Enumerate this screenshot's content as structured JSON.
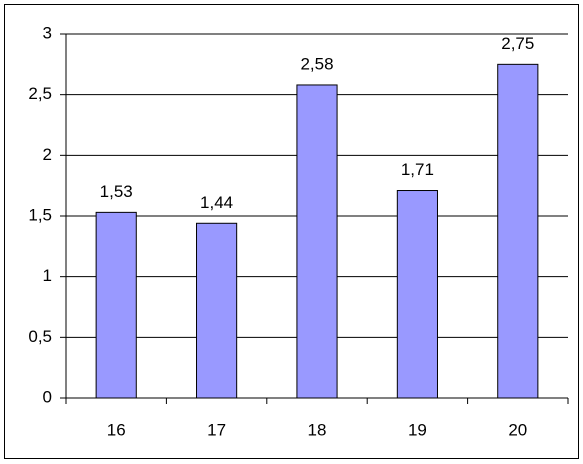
{
  "chart_data": {
    "type": "bar",
    "categories": [
      "16",
      "17",
      "18",
      "19",
      "20"
    ],
    "values": [
      1.53,
      1.44,
      2.58,
      1.71,
      2.75
    ],
    "value_labels": [
      "1,53",
      "1,44",
      "2,58",
      "1,71",
      "2,75"
    ],
    "color": "#9999ff",
    "ylim": [
      0,
      3
    ],
    "yticks": [
      0,
      {
        "value": 0.5,
        "label": "0,5"
      },
      1,
      {
        "value": 1.5,
        "label": "1,5"
      },
      2,
      {
        "value": 2.5,
        "label": "2,5"
      },
      3
    ],
    "grid": true
  }
}
